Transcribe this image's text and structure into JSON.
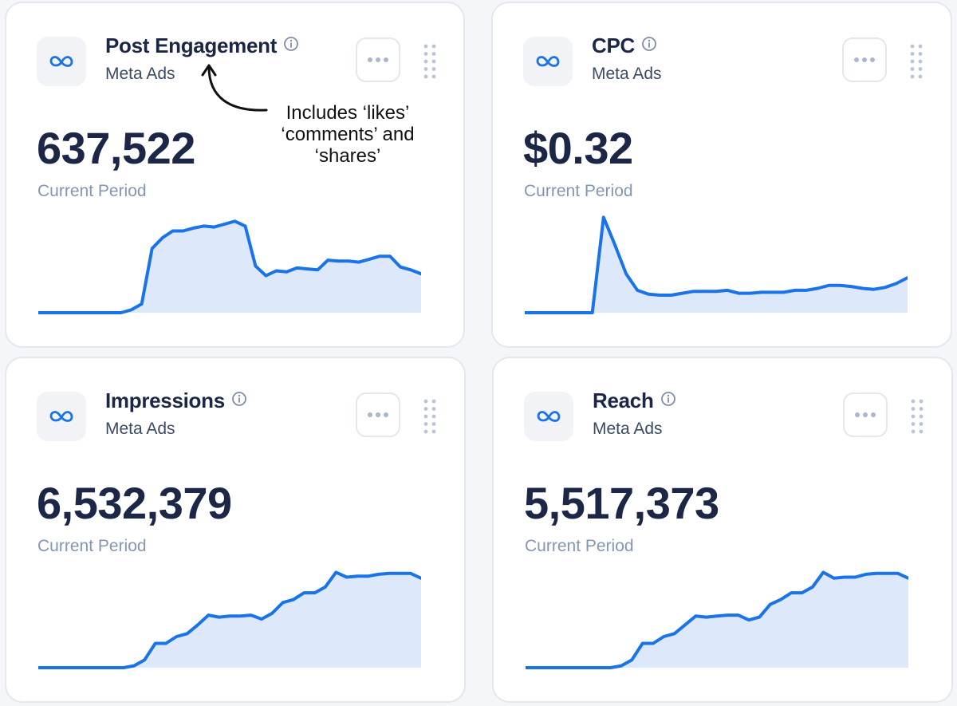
{
  "colors": {
    "accent": "#1a73e8",
    "fill": "#dde9fb",
    "title": "#1c2647",
    "muted": "#8396b2"
  },
  "annotation": {
    "text": "Includes ‘likes’ ‘comments’ and ‘shares’"
  },
  "cards": [
    {
      "title": "Post Engagement",
      "source": "Meta Ads",
      "value": "637,522",
      "period": "Current Period",
      "icon": "meta-logo-icon",
      "chart_data": {
        "type": "area",
        "values": [
          0,
          0,
          0,
          0,
          0,
          0,
          0,
          0,
          0,
          3,
          9,
          66,
          77,
          84,
          84,
          87,
          89,
          88,
          91,
          94,
          89,
          48,
          38,
          43,
          42,
          46,
          45,
          44,
          54,
          53,
          53,
          52,
          55,
          58,
          58,
          47,
          44,
          40
        ],
        "ylim": [
          0,
          100
        ]
      }
    },
    {
      "title": "CPC",
      "source": "Meta Ads",
      "value": "$0.32",
      "period": "Current Period",
      "icon": "meta-logo-icon",
      "chart_data": {
        "type": "area",
        "values": [
          0,
          0,
          0,
          0,
          0,
          0,
          0,
          98,
          70,
          40,
          23,
          19,
          18,
          18,
          20,
          22,
          22,
          22,
          23,
          20,
          20,
          21,
          21,
          21,
          23,
          23,
          25,
          28,
          28,
          27,
          25,
          24,
          26,
          30,
          36
        ],
        "ylim": [
          0,
          100
        ]
      }
    },
    {
      "title": "Impressions",
      "source": "Meta Ads",
      "value": "6,532,379",
      "period": "Current Period",
      "icon": "meta-logo-icon",
      "chart_data": {
        "type": "area",
        "values": [
          0,
          0,
          0,
          0,
          0,
          0,
          0,
          0,
          0,
          2,
          8,
          25,
          25,
          32,
          35,
          44,
          54,
          52,
          53,
          53,
          54,
          50,
          56,
          67,
          70,
          77,
          77,
          83,
          98,
          93,
          94,
          94,
          96,
          97,
          97,
          97,
          92
        ],
        "ylim": [
          0,
          100
        ]
      }
    },
    {
      "title": "Reach",
      "source": "Meta Ads",
      "value": "5,517,373",
      "period": "Current Period",
      "icon": "meta-logo-icon",
      "chart_data": {
        "type": "area",
        "values": [
          0,
          0,
          0,
          0,
          0,
          0,
          0,
          0,
          0,
          2,
          8,
          25,
          25,
          32,
          35,
          44,
          53,
          52,
          53,
          54,
          54,
          49,
          52,
          65,
          70,
          77,
          77,
          83,
          98,
          92,
          93,
          93,
          96,
          97,
          97,
          97,
          92
        ],
        "ylim": [
          0,
          100
        ]
      }
    }
  ]
}
